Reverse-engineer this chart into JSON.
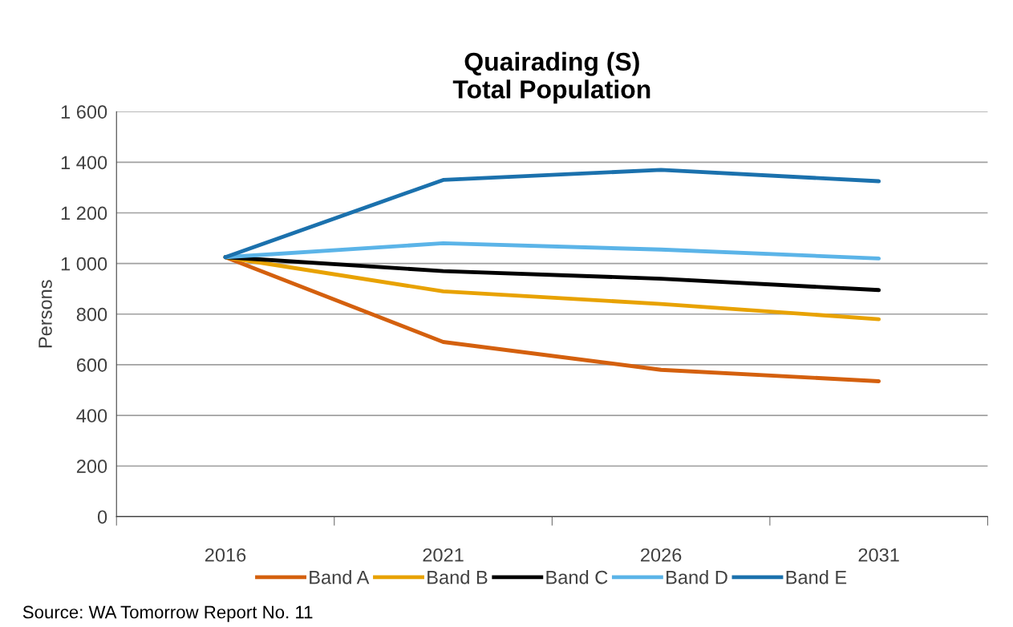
{
  "chart_data": {
    "type": "line",
    "title": "Quairading (S)\nTotal Population",
    "ylabel": "Persons",
    "categories": [
      "2016",
      "2021",
      "2026",
      "2031"
    ],
    "series": [
      {
        "name": "Band A",
        "color": "#d4600e",
        "values": [
          1025,
          690,
          580,
          535
        ]
      },
      {
        "name": "Band B",
        "color": "#e8a202",
        "values": [
          1025,
          890,
          840,
          780
        ]
      },
      {
        "name": "Band C",
        "color": "#000000",
        "values": [
          1025,
          970,
          940,
          895
        ]
      },
      {
        "name": "Band D",
        "color": "#5bb4e8",
        "values": [
          1025,
          1080,
          1055,
          1020
        ]
      },
      {
        "name": "Band E",
        "color": "#1b71ad",
        "values": [
          1025,
          1330,
          1370,
          1325
        ]
      }
    ],
    "ylim": [
      0,
      1600
    ],
    "yticks": [
      0,
      200,
      400,
      600,
      800,
      {
        "value": 1000,
        "label": "1 000"
      },
      {
        "value": 1200,
        "label": "1 200"
      },
      {
        "value": 1400,
        "label": "1 400"
      },
      {
        "value": 1600,
        "label": "1 600"
      }
    ],
    "grid": "y",
    "legend": "bottom",
    "marker": "none",
    "line_style": "solid",
    "annotations": [
      "Source: WA Tomorrow Report No. 11"
    ]
  }
}
